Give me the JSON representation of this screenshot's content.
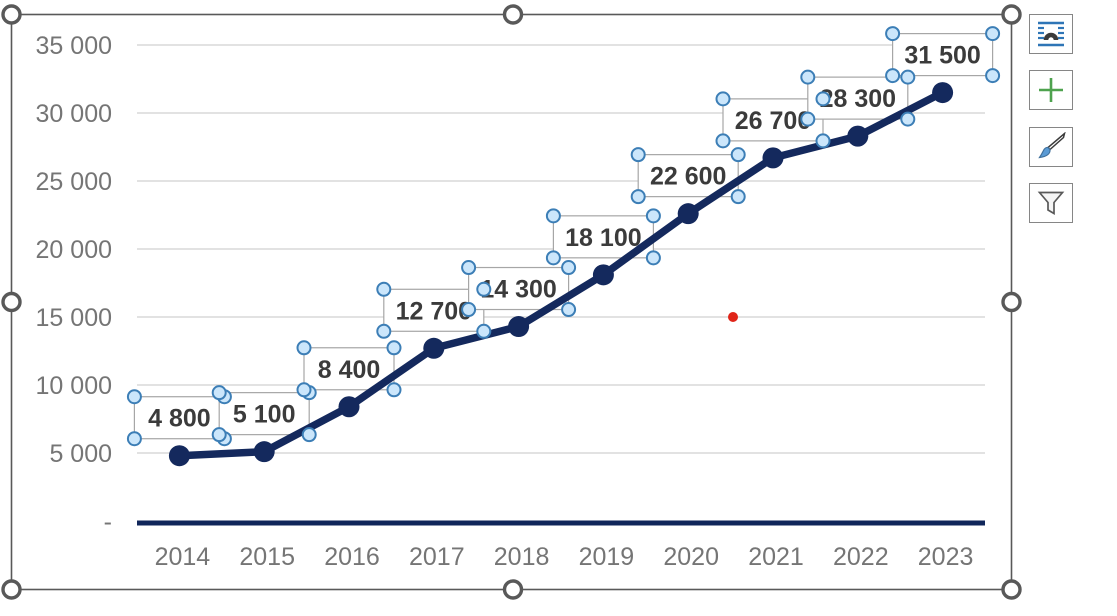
{
  "chart_data": {
    "type": "line",
    "title": "",
    "categories": [
      "2014",
      "2015",
      "2016",
      "2017",
      "2018",
      "2019",
      "2020",
      "2021",
      "2022",
      "2023"
    ],
    "series": [
      {
        "name": "",
        "values": [
          4800,
          5100,
          8400,
          12700,
          14300,
          18100,
          22600,
          26700,
          28300,
          31500
        ]
      }
    ],
    "data_labels": [
      "4 800",
      "5 100",
      "8 400",
      "12 700",
      "14 300",
      "18 100",
      "22 600",
      "26 700",
      "28 300",
      "31 500"
    ],
    "xlabel": "",
    "ylabel": "",
    "y_axis": {
      "range": [
        0,
        35000
      ],
      "ticks": [
        {
          "label": "35 000",
          "value": 35000
        },
        {
          "label": "30 000",
          "value": 30000
        },
        {
          "label": "25 000",
          "value": 25000
        },
        {
          "label": "20 000",
          "value": 20000
        },
        {
          "label": "15 000",
          "value": 15000
        },
        {
          "label": "10 000",
          "value": 10000
        },
        {
          "label": "5 000",
          "value": 5000
        },
        {
          "label": "-",
          "value": 0
        }
      ]
    },
    "grid": true,
    "legend": "none",
    "marker": "circle"
  },
  "selection": {
    "chart_selected": true,
    "data_labels_selected": true
  },
  "side_buttons": [
    {
      "name": "layout-options",
      "icon": "layout-options-icon"
    },
    {
      "name": "chart-elements",
      "icon": "plus-icon"
    },
    {
      "name": "chart-styles",
      "icon": "paintbrush-icon"
    },
    {
      "name": "chart-filters",
      "icon": "funnel-icon"
    }
  ],
  "annotations": {
    "red_pointer_dot": {
      "near_gridline": "15 000",
      "color": "#e02418"
    }
  },
  "colors": {
    "series_line": "#14295d",
    "axis_line": "#10265a",
    "gridline": "#d9d9d9",
    "axis_text": "#757575",
    "label_text": "#3b3b3b",
    "label_box_border": "#a6a6a6",
    "label_handle_fill": "#cbe6fb",
    "label_handle_stroke": "#3c7eb6",
    "chart_border": "#595959",
    "red_dot": "#e02418",
    "button_border": "#868686",
    "icon_blue": "#2e75b6",
    "icon_green": "#4ea24e",
    "icon_brush_blue": "#5b9bd5",
    "icon_gray": "#595959"
  }
}
